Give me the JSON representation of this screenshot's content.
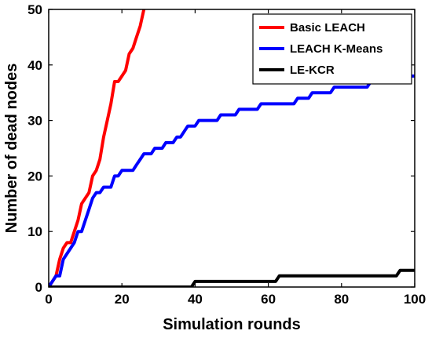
{
  "chart_data": {
    "type": "line",
    "xlabel": "Simulation rounds",
    "ylabel": "Number of dead nodes",
    "xlim": [
      0,
      100
    ],
    "ylim": [
      0,
      50
    ],
    "xticks": [
      0,
      20,
      40,
      60,
      80,
      100
    ],
    "yticks": [
      0,
      10,
      20,
      30,
      40,
      50
    ],
    "grid": false,
    "legend_position": "top-right",
    "series": [
      {
        "name": "Basic LEACH",
        "color": "#ff0000",
        "points": [
          [
            0,
            0
          ],
          [
            1,
            1
          ],
          [
            2,
            2
          ],
          [
            3,
            5
          ],
          [
            4,
            7
          ],
          [
            5,
            8
          ],
          [
            6,
            8
          ],
          [
            7,
            10
          ],
          [
            8,
            12
          ],
          [
            9,
            15
          ],
          [
            10,
            16
          ],
          [
            11,
            17
          ],
          [
            12,
            20
          ],
          [
            13,
            21
          ],
          [
            14,
            23
          ],
          [
            15,
            27
          ],
          [
            16,
            30
          ],
          [
            17,
            33
          ],
          [
            18,
            37
          ],
          [
            19,
            37
          ],
          [
            20,
            38
          ],
          [
            21,
            39
          ],
          [
            22,
            42
          ],
          [
            23,
            43
          ],
          [
            24,
            45
          ],
          [
            25,
            47
          ],
          [
            26,
            50
          ]
        ]
      },
      {
        "name": "LEACH K-Means",
        "color": "#0000ff",
        "points": [
          [
            0,
            0
          ],
          [
            2,
            2
          ],
          [
            3,
            2
          ],
          [
            4,
            5
          ],
          [
            5,
            6
          ],
          [
            6,
            7
          ],
          [
            7,
            8
          ],
          [
            8,
            10
          ],
          [
            9,
            10
          ],
          [
            10,
            12
          ],
          [
            11,
            14
          ],
          [
            12,
            16
          ],
          [
            13,
            17
          ],
          [
            14,
            17
          ],
          [
            15,
            18
          ],
          [
            17,
            18
          ],
          [
            18,
            20
          ],
          [
            19,
            20
          ],
          [
            20,
            21
          ],
          [
            23,
            21
          ],
          [
            24,
            22
          ],
          [
            25,
            23
          ],
          [
            26,
            24
          ],
          [
            28,
            24
          ],
          [
            29,
            25
          ],
          [
            31,
            25
          ],
          [
            32,
            26
          ],
          [
            34,
            26
          ],
          [
            35,
            27
          ],
          [
            36,
            27
          ],
          [
            37,
            28
          ],
          [
            38,
            29
          ],
          [
            40,
            29
          ],
          [
            41,
            30
          ],
          [
            46,
            30
          ],
          [
            47,
            31
          ],
          [
            51,
            31
          ],
          [
            52,
            32
          ],
          [
            57,
            32
          ],
          [
            58,
            33
          ],
          [
            67,
            33
          ],
          [
            68,
            34
          ],
          [
            71,
            34
          ],
          [
            72,
            35
          ],
          [
            77,
            35
          ],
          [
            78,
            36
          ],
          [
            87,
            36
          ],
          [
            88,
            37
          ],
          [
            98,
            37
          ],
          [
            99,
            38
          ],
          [
            100,
            38
          ]
        ]
      },
      {
        "name": "LE-KCR",
        "color": "#000000",
        "points": [
          [
            0,
            0
          ],
          [
            39,
            0
          ],
          [
            40,
            1
          ],
          [
            62,
            1
          ],
          [
            63,
            2
          ],
          [
            95,
            2
          ],
          [
            96,
            3
          ],
          [
            100,
            3
          ]
        ]
      }
    ]
  }
}
